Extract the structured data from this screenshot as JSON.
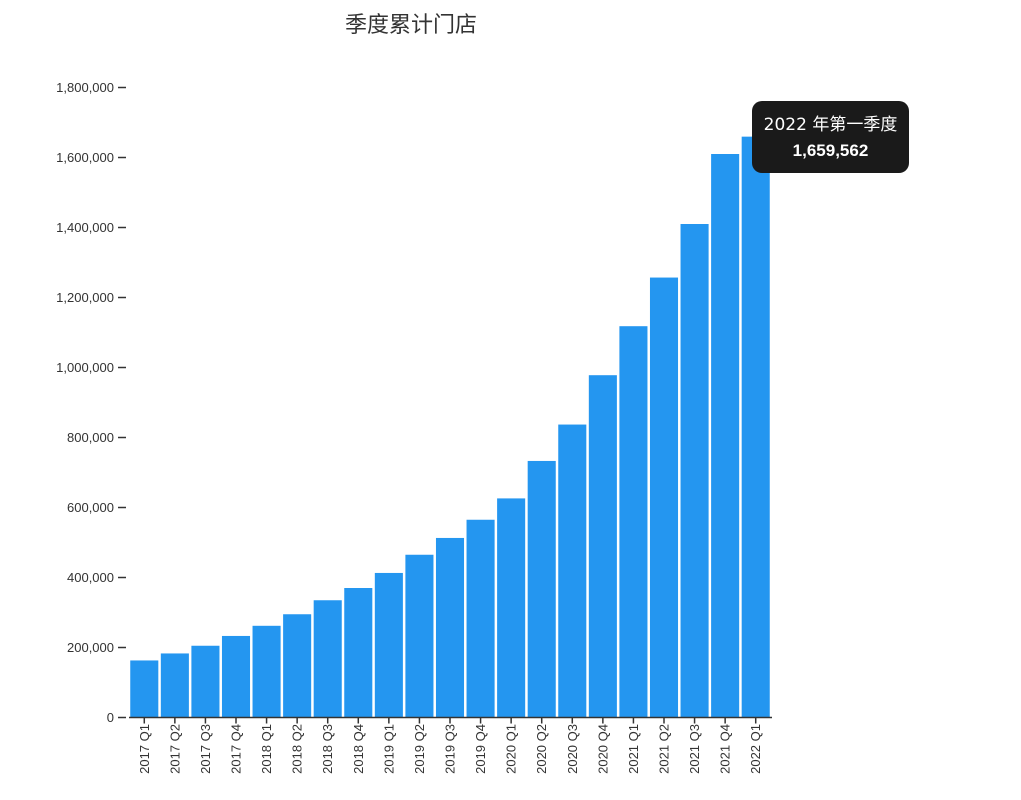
{
  "chart_data": {
    "type": "bar",
    "title": "季度累计门店",
    "xlabel": "",
    "ylabel": "",
    "categories": [
      "2017 Q1",
      "2017 Q2",
      "2017 Q3",
      "2017 Q4",
      "2018 Q1",
      "2018 Q2",
      "2018 Q3",
      "2018 Q4",
      "2019 Q1",
      "2019 Q2",
      "2019 Q3",
      "2019 Q4",
      "2020 Q1",
      "2020 Q2",
      "2020 Q3",
      "2020 Q4",
      "2021 Q1",
      "2021 Q2",
      "2021 Q3",
      "2021 Q4",
      "2022 Q1"
    ],
    "values": [
      163000,
      183000,
      205000,
      233000,
      262000,
      295000,
      335000,
      370000,
      413000,
      465000,
      513000,
      565000,
      626000,
      733000,
      837000,
      978000,
      1118000,
      1257000,
      1410000,
      1610000,
      1659562
    ],
    "ylim": [
      0,
      1800000
    ],
    "yticks": [
      0,
      200000,
      400000,
      600000,
      800000,
      1000000,
      1200000,
      1400000,
      1600000,
      1800000
    ],
    "ytick_labels": [
      "0",
      "200,000",
      "400,000",
      "600,000",
      "800,000",
      "1,000,000",
      "1,200,000",
      "1,400,000",
      "1,600,000",
      "1,800,000"
    ],
    "grid": false,
    "legend": "none",
    "bar_color": "#2496f0",
    "axis_color": "#333333"
  },
  "tooltip": {
    "label": "2022 年第一季度",
    "value": "1,659,562"
  }
}
